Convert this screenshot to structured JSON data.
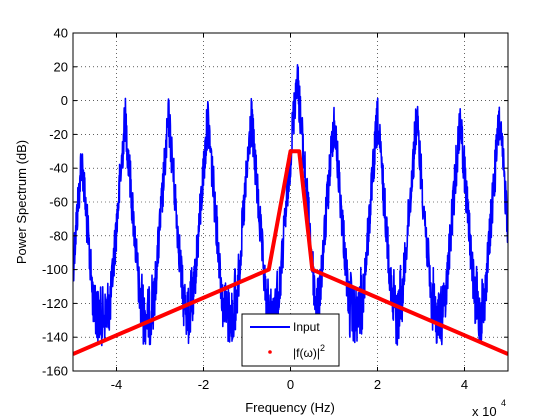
{
  "chart_data": {
    "type": "line",
    "title": "",
    "xlabel": "Frequency (Hz)",
    "ylabel": "Power Spectrum (dB)",
    "x_multiplier_label": "x 10",
    "x_multiplier_exponent": "4",
    "xlim": [
      -50000,
      50000
    ],
    "ylim": [
      -160,
      40
    ],
    "xticks": [
      -40000,
      -20000,
      0,
      20000,
      40000
    ],
    "xtick_labels": [
      "-4",
      "-2",
      "0",
      "2",
      "4"
    ],
    "yticks": [
      -160,
      -140,
      -120,
      -100,
      -80,
      -60,
      -40,
      -20,
      0,
      20,
      40
    ],
    "ytick_labels": [
      "-160",
      "-140",
      "-120",
      "-100",
      "-80",
      "-60",
      "-40",
      "-20",
      "0",
      "20",
      "40"
    ],
    "grid": true,
    "legend_position": "bottom-center",
    "series": [
      {
        "name": "Input",
        "color": "#0000ff",
        "style": "noisy-line",
        "peaks_x": [
          -48000,
          -38000,
          -28000,
          -19000,
          -9000,
          1500,
          10000,
          20000,
          29000,
          39000,
          48000
        ],
        "peaks_y": [
          -20,
          4,
          4,
          4,
          4,
          30,
          4,
          4,
          4,
          4,
          4
        ],
        "floor_y": -130,
        "noise_low_y": -155
      },
      {
        "name": "|f(ω)|",
        "name_superscript": "2",
        "color": "#ff0000",
        "legend_marker": "point",
        "x": [
          -50000,
          -5000,
          0,
          2000,
          5000,
          50000
        ],
        "y": [
          -150,
          -100,
          -30,
          -30,
          -100,
          -150
        ]
      }
    ]
  }
}
